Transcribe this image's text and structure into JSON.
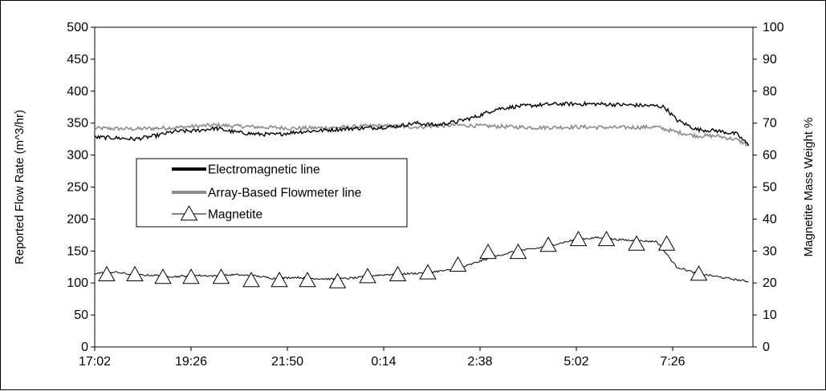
{
  "chart_data": {
    "type": "line",
    "xlabel": "",
    "ylabel": "Reported Flow Rate (m^3/hr)",
    "y2label": "Magnetite Mass Weight %",
    "ylim": [
      0,
      500
    ],
    "y2lim": [
      0,
      100
    ],
    "yticks": [
      0,
      50,
      100,
      150,
      200,
      250,
      300,
      350,
      400,
      450,
      500
    ],
    "y2ticks": [
      0,
      10,
      20,
      30,
      40,
      50,
      60,
      70,
      80,
      90,
      100
    ],
    "x_tick_labels": [
      "17:02",
      "19:26",
      "21:50",
      "0:14",
      "2:38",
      "5:02",
      "7:26"
    ],
    "x_unit": "hours since 17:02",
    "xlim": [
      0,
      16.4
    ],
    "grid": false,
    "legend_position": "left-center",
    "series": [
      {
        "name": "Electromagnetic line",
        "axis": "left",
        "color": "#000000",
        "x": [
          0,
          0.5,
          1,
          1.5,
          2,
          2.5,
          3,
          3.5,
          4,
          4.5,
          5,
          5.5,
          6,
          6.5,
          7,
          7.5,
          8,
          8.5,
          9,
          9.5,
          10,
          10.5,
          11,
          11.5,
          12,
          12.5,
          13,
          13.5,
          14,
          14.2,
          14.5,
          15,
          15.5,
          16,
          16.3
        ],
        "values": [
          328,
          327,
          325,
          330,
          337,
          338,
          342,
          336,
          333,
          332,
          336,
          338,
          340,
          342,
          343,
          345,
          350,
          347,
          352,
          360,
          372,
          376,
          378,
          380,
          380,
          380,
          379,
          378,
          377,
          375,
          355,
          340,
          338,
          333,
          315
        ]
      },
      {
        "name": "Array-Based Flowmeter line",
        "axis": "left",
        "color": "#8c8c8c",
        "x": [
          0,
          1,
          2,
          3,
          4,
          5,
          6,
          7,
          8,
          9,
          10,
          11,
          12,
          13,
          14,
          14.5,
          15,
          15.5,
          16,
          16.3
        ],
        "values": [
          342,
          341,
          343,
          347,
          344,
          342,
          343,
          346,
          344,
          347,
          345,
          343,
          344,
          343,
          344,
          336,
          330,
          330,
          324,
          315
        ]
      },
      {
        "name": "Magnetite",
        "axis": "right",
        "color": "#000000",
        "x": [
          0,
          0.5,
          1,
          1.5,
          2,
          2.5,
          3,
          3.5,
          4,
          4.5,
          5,
          5.5,
          6,
          6.5,
          7,
          7.5,
          8,
          8.5,
          9,
          9.5,
          10,
          10.5,
          11,
          11.5,
          12,
          12.5,
          13,
          13.5,
          14,
          14.5,
          15,
          15.5,
          16,
          16.3
        ],
        "values": [
          23,
          23.4,
          22.5,
          22.4,
          22,
          22.4,
          22.2,
          22.6,
          22.2,
          21.4,
          21.8,
          21.4,
          21.2,
          21.6,
          22.4,
          22.8,
          23,
          23.6,
          24.2,
          26.4,
          28.4,
          30,
          30.8,
          32.2,
          33.6,
          34.2,
          33.6,
          33.2,
          33,
          25,
          23,
          22,
          21,
          20.4
        ],
        "markers_x": [
          0.3,
          1.0,
          1.7,
          2.4,
          3.15,
          3.9,
          4.6,
          5.3,
          6.05,
          6.8,
          7.55,
          8.3,
          9.05,
          9.8,
          10.55,
          11.3,
          12.05,
          12.75,
          13.5,
          14.25,
          15.05
        ],
        "markers_y": [
          22.6,
          22.6,
          21.8,
          21.8,
          21.8,
          20.8,
          20.8,
          20.8,
          20.4,
          22,
          22.6,
          23.2,
          25.6,
          29.6,
          29.6,
          31.8,
          33.6,
          33.6,
          32.2,
          32.2,
          22.8
        ]
      }
    ]
  }
}
